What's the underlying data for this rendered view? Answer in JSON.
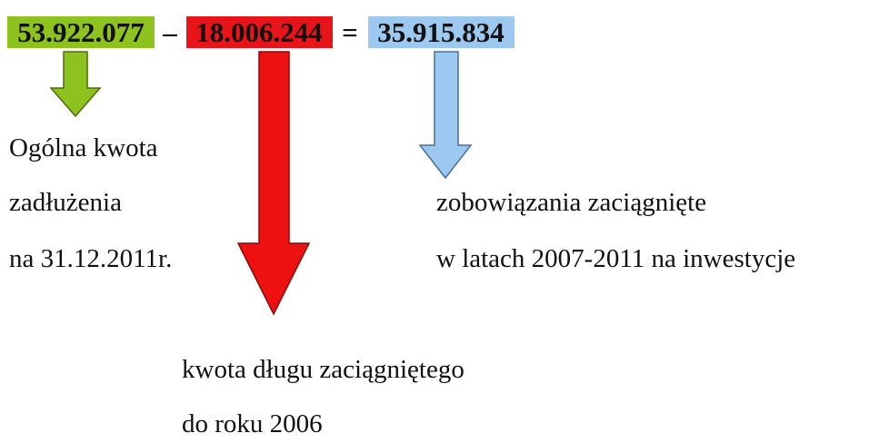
{
  "equation": {
    "minuend": "53.922.077",
    "minus": "–",
    "subtrahend": "18.006.244",
    "equals": "=",
    "result": "35.915.834"
  },
  "labels": {
    "total": [
      "Ogólna kwota",
      "zadłużenia",
      "na 31.12.2011r."
    ],
    "investment": [
      "zobowiązania zaciągnięte",
      "w latach 2007-2011 na inwestycje"
    ],
    "old_debt": [
      "kwota długu zaciągniętego",
      "do roku 2006"
    ]
  }
}
